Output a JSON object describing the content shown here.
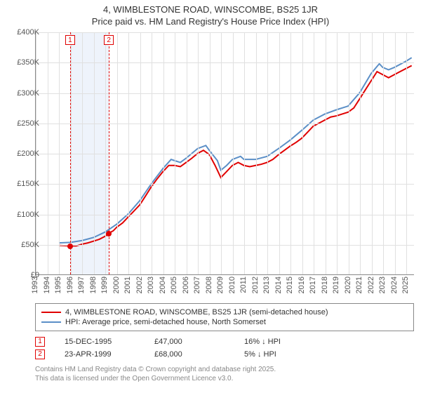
{
  "title": {
    "line1": "4, WIMBLESTONE ROAD, WINSCOMBE, BS25 1JR",
    "line2": "Price paid vs. HM Land Registry's House Price Index (HPI)"
  },
  "chart": {
    "type": "line",
    "x_start_year": 1993,
    "x_end_year": 2025,
    "xlim": [
      1993,
      2025.7
    ],
    "ylim": [
      0,
      400000
    ],
    "ytick_step": 50000,
    "ytick_labels": [
      "£0",
      "£50K",
      "£100K",
      "£150K",
      "£200K",
      "£250K",
      "£300K",
      "£350K",
      "£400K"
    ],
    "xtick_years": [
      1993,
      1994,
      1995,
      1996,
      1997,
      1998,
      1999,
      2000,
      2001,
      2002,
      2003,
      2004,
      2005,
      2006,
      2007,
      2008,
      2009,
      2010,
      2011,
      2012,
      2013,
      2014,
      2015,
      2016,
      2017,
      2018,
      2019,
      2020,
      2021,
      2022,
      2023,
      2024,
      2025
    ],
    "grid_color": "#e0e0e0",
    "background_color": "#ffffff",
    "shade_band": {
      "from_year": 1995.96,
      "to_year": 1999.31,
      "color": "#eef3fb"
    },
    "marker_lines": [
      {
        "id": "1",
        "year": 1995.96
      },
      {
        "id": "2",
        "year": 1999.31
      }
    ],
    "series": [
      {
        "name": "price_paid",
        "label": "4, WIMBLESTONE ROAD, WINSCOMBE, BS25 1JR (semi-detached house)",
        "color": "#e00000",
        "line_width": 2,
        "points": [
          [
            1995.0,
            48000
          ],
          [
            1995.96,
            47000
          ],
          [
            1996.5,
            47000
          ],
          [
            1997.0,
            50000
          ],
          [
            1997.5,
            52000
          ],
          [
            1998.0,
            55000
          ],
          [
            1998.5,
            58000
          ],
          [
            1999.0,
            63000
          ],
          [
            1999.31,
            68000
          ],
          [
            1999.7,
            72000
          ],
          [
            2000.0,
            78000
          ],
          [
            2000.5,
            85000
          ],
          [
            2001.0,
            95000
          ],
          [
            2001.5,
            105000
          ],
          [
            2002.0,
            115000
          ],
          [
            2002.5,
            130000
          ],
          [
            2003.0,
            145000
          ],
          [
            2003.5,
            158000
          ],
          [
            2004.0,
            170000
          ],
          [
            2004.5,
            180000
          ],
          [
            2005.0,
            180000
          ],
          [
            2005.5,
            178000
          ],
          [
            2006.0,
            185000
          ],
          [
            2006.5,
            192000
          ],
          [
            2007.0,
            200000
          ],
          [
            2007.5,
            205000
          ],
          [
            2008.0,
            198000
          ],
          [
            2008.5,
            180000
          ],
          [
            2009.0,
            160000
          ],
          [
            2009.5,
            170000
          ],
          [
            2010.0,
            180000
          ],
          [
            2010.5,
            185000
          ],
          [
            2011.0,
            180000
          ],
          [
            2011.5,
            178000
          ],
          [
            2012.0,
            180000
          ],
          [
            2012.5,
            182000
          ],
          [
            2013.0,
            185000
          ],
          [
            2013.5,
            190000
          ],
          [
            2014.0,
            198000
          ],
          [
            2014.5,
            205000
          ],
          [
            2015.0,
            212000
          ],
          [
            2015.5,
            218000
          ],
          [
            2016.0,
            225000
          ],
          [
            2016.5,
            235000
          ],
          [
            2017.0,
            245000
          ],
          [
            2017.5,
            250000
          ],
          [
            2018.0,
            255000
          ],
          [
            2018.5,
            260000
          ],
          [
            2019.0,
            262000
          ],
          [
            2019.5,
            265000
          ],
          [
            2020.0,
            268000
          ],
          [
            2020.5,
            275000
          ],
          [
            2021.0,
            290000
          ],
          [
            2021.5,
            305000
          ],
          [
            2022.0,
            320000
          ],
          [
            2022.5,
            335000
          ],
          [
            2023.0,
            330000
          ],
          [
            2023.5,
            325000
          ],
          [
            2024.0,
            330000
          ],
          [
            2024.5,
            335000
          ],
          [
            2025.0,
            340000
          ],
          [
            2025.5,
            345000
          ]
        ]
      },
      {
        "name": "hpi",
        "label": "HPI: Average price, semi-detached house, North Somerset",
        "color": "#5b8fc7",
        "line_width": 2,
        "points": [
          [
            1995.0,
            52000
          ],
          [
            1996.0,
            53000
          ],
          [
            1997.0,
            56000
          ],
          [
            1998.0,
            61000
          ],
          [
            1999.0,
            70000
          ],
          [
            2000.0,
            83000
          ],
          [
            2001.0,
            100000
          ],
          [
            2002.0,
            122000
          ],
          [
            2003.0,
            150000
          ],
          [
            2004.0,
            175000
          ],
          [
            2004.7,
            190000
          ],
          [
            2005.0,
            188000
          ],
          [
            2005.5,
            185000
          ],
          [
            2006.0,
            192000
          ],
          [
            2007.0,
            208000
          ],
          [
            2007.7,
            213000
          ],
          [
            2008.0,
            205000
          ],
          [
            2008.7,
            188000
          ],
          [
            2009.0,
            172000
          ],
          [
            2009.5,
            180000
          ],
          [
            2010.0,
            190000
          ],
          [
            2010.7,
            195000
          ],
          [
            2011.0,
            190000
          ],
          [
            2012.0,
            190000
          ],
          [
            2013.0,
            195000
          ],
          [
            2014.0,
            208000
          ],
          [
            2015.0,
            222000
          ],
          [
            2016.0,
            238000
          ],
          [
            2017.0,
            255000
          ],
          [
            2018.0,
            265000
          ],
          [
            2019.0,
            272000
          ],
          [
            2020.0,
            278000
          ],
          [
            2021.0,
            300000
          ],
          [
            2022.0,
            332000
          ],
          [
            2022.7,
            348000
          ],
          [
            2023.0,
            342000
          ],
          [
            2023.5,
            338000
          ],
          [
            2024.0,
            342000
          ],
          [
            2025.0,
            352000
          ],
          [
            2025.5,
            358000
          ]
        ]
      }
    ],
    "sale_dots": [
      {
        "year": 1995.96,
        "value": 47000,
        "color": "#e00000"
      },
      {
        "year": 1999.31,
        "value": 68000,
        "color": "#e00000"
      }
    ]
  },
  "legend": {
    "items": [
      {
        "color": "#e00000",
        "label": "4, WIMBLESTONE ROAD, WINSCOMBE, BS25 1JR (semi-detached house)"
      },
      {
        "color": "#5b8fc7",
        "label": "HPI: Average price, semi-detached house, North Somerset"
      }
    ]
  },
  "markers": [
    {
      "id": "1",
      "date": "15-DEC-1995",
      "price": "£47,000",
      "delta": "16% ↓ HPI"
    },
    {
      "id": "2",
      "date": "23-APR-1999",
      "price": "£68,000",
      "delta": "5% ↓ HPI"
    }
  ],
  "footnote": {
    "line1": "Contains HM Land Registry data © Crown copyright and database right 2025.",
    "line2": "This data is licensed under the Open Government Licence v3.0."
  }
}
